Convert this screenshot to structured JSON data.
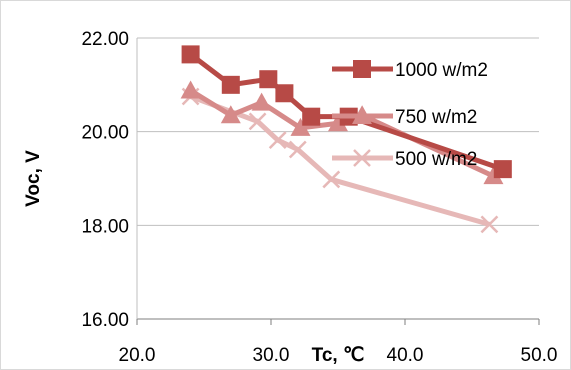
{
  "chart_data": {
    "type": "line",
    "xlabel": "Tc, ℃",
    "ylabel": "Voc, V",
    "xlim": [
      20,
      50
    ],
    "ylim": [
      16,
      22
    ],
    "x_ticks": [
      "20.0",
      "30.0",
      "40.0",
      "50.0"
    ],
    "y_ticks": [
      "16.00",
      "18.00",
      "20.00",
      "22.00"
    ],
    "grid": true,
    "legend_position": "right",
    "series": [
      {
        "name": "1000 w/m2",
        "marker": "square",
        "color": "#b74a46",
        "x": [
          24.0,
          27.0,
          29.8,
          31.0,
          33.0,
          35.8,
          47.3
        ],
        "y": [
          21.65,
          21.0,
          21.12,
          20.82,
          20.32,
          20.32,
          19.2
        ]
      },
      {
        "name": "750 w/m2",
        "marker": "triangle",
        "color": "#d68a89",
        "x": [
          24.0,
          27.0,
          29.3,
          32.2,
          35.0,
          36.8,
          46.6
        ],
        "y": [
          20.88,
          20.35,
          20.62,
          20.08,
          20.18,
          20.35,
          19.05
        ]
      },
      {
        "name": "500 w/m2",
        "marker": "x",
        "color": "#e6b8b7",
        "x": [
          24.0,
          29.0,
          30.5,
          32.0,
          34.5,
          46.3
        ],
        "y": [
          20.75,
          20.22,
          19.82,
          19.62,
          18.98,
          18.02
        ]
      }
    ]
  }
}
